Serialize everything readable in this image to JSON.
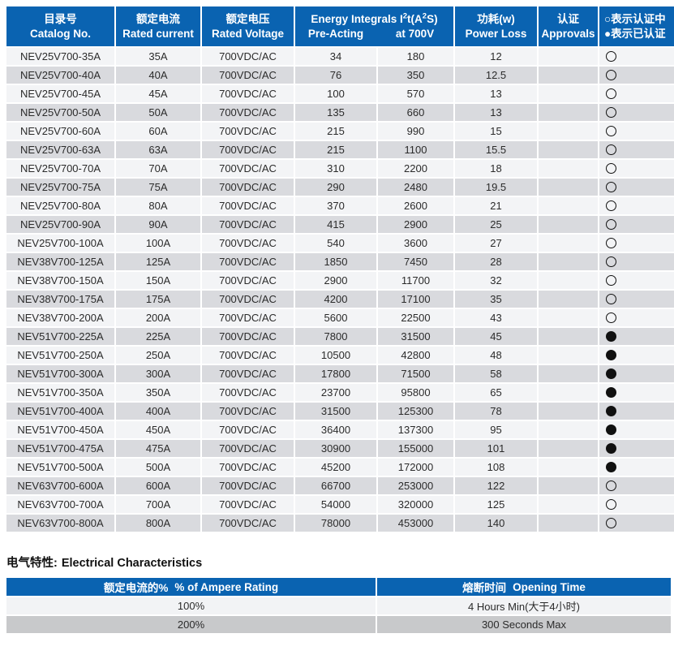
{
  "colors": {
    "header_blue": "#0a63b1",
    "row_light": "#f3f4f6",
    "row_dark": "#d9dade",
    "elec_row_dark": "#c8c9cb",
    "text": "#2b2b2b",
    "status_dot": "#111111"
  },
  "main_table": {
    "header": {
      "catalog_zh": "目录号",
      "catalog_en": "Catalog No.",
      "current_zh": "额定电流",
      "current_en": "Rated current",
      "voltage_zh": "额定电压",
      "voltage_en": "Rated Voltage",
      "energy_parts": [
        "Energy Integrals I",
        "2",
        "t(A",
        "2",
        "S)"
      ],
      "energy_sub_pre": "Pre-Acting",
      "energy_sub_at": "at 700V",
      "power_zh": "功耗(w)",
      "power_en": "Power Loss",
      "approvals_zh": "认证",
      "approvals_en": "Approvals",
      "legend_line1": "○表示认证中",
      "legend_line2": "●表示已认证"
    },
    "rows": [
      {
        "catalog": "NEV25V700-35A",
        "current": "35A",
        "voltage": "700VDC/AC",
        "pre_acting": "34",
        "at_700v": "180",
        "power_loss": "12",
        "status": "○"
      },
      {
        "catalog": "NEV25V700-40A",
        "current": "40A",
        "voltage": "700VDC/AC",
        "pre_acting": "76",
        "at_700v": "350",
        "power_loss": "12.5",
        "status": "○"
      },
      {
        "catalog": "NEV25V700-45A",
        "current": "45A",
        "voltage": "700VDC/AC",
        "pre_acting": "100",
        "at_700v": "570",
        "power_loss": "13",
        "status": "○"
      },
      {
        "catalog": "NEV25V700-50A",
        "current": "50A",
        "voltage": "700VDC/AC",
        "pre_acting": "135",
        "at_700v": "660",
        "power_loss": "13",
        "status": "○"
      },
      {
        "catalog": "NEV25V700-60A",
        "current": "60A",
        "voltage": "700VDC/AC",
        "pre_acting": "215",
        "at_700v": "990",
        "power_loss": "15",
        "status": "○"
      },
      {
        "catalog": "NEV25V700-63A",
        "current": "63A",
        "voltage": "700VDC/AC",
        "pre_acting": "215",
        "at_700v": "1100",
        "power_loss": "15.5",
        "status": "○"
      },
      {
        "catalog": "NEV25V700-70A",
        "current": "70A",
        "voltage": "700VDC/AC",
        "pre_acting": "310",
        "at_700v": "2200",
        "power_loss": "18",
        "status": "○"
      },
      {
        "catalog": "NEV25V700-75A",
        "current": "75A",
        "voltage": "700VDC/AC",
        "pre_acting": "290",
        "at_700v": "2480",
        "power_loss": "19.5",
        "status": "○"
      },
      {
        "catalog": "NEV25V700-80A",
        "current": "80A",
        "voltage": "700VDC/AC",
        "pre_acting": "370",
        "at_700v": "2600",
        "power_loss": "21",
        "status": "○"
      },
      {
        "catalog": "NEV25V700-90A",
        "current": "90A",
        "voltage": "700VDC/AC",
        "pre_acting": "415",
        "at_700v": "2900",
        "power_loss": "25",
        "status": "○"
      },
      {
        "catalog": "NEV25V700-100A",
        "current": "100A",
        "voltage": "700VDC/AC",
        "pre_acting": "540",
        "at_700v": "3600",
        "power_loss": "27",
        "status": "○"
      },
      {
        "catalog": "NEV38V700-125A",
        "current": "125A",
        "voltage": "700VDC/AC",
        "pre_acting": "1850",
        "at_700v": "7450",
        "power_loss": "28",
        "status": "○"
      },
      {
        "catalog": "NEV38V700-150A",
        "current": "150A",
        "voltage": "700VDC/AC",
        "pre_acting": "2900",
        "at_700v": "11700",
        "power_loss": "32",
        "status": "○"
      },
      {
        "catalog": "NEV38V700-175A",
        "current": "175A",
        "voltage": "700VDC/AC",
        "pre_acting": "4200",
        "at_700v": "17100",
        "power_loss": "35",
        "status": "○"
      },
      {
        "catalog": "NEV38V700-200A",
        "current": "200A",
        "voltage": "700VDC/AC",
        "pre_acting": "5600",
        "at_700v": "22500",
        "power_loss": "43",
        "status": "○"
      },
      {
        "catalog": "NEV51V700-225A",
        "current": "225A",
        "voltage": "700VDC/AC",
        "pre_acting": "7800",
        "at_700v": "31500",
        "power_loss": "45",
        "status": "●"
      },
      {
        "catalog": "NEV51V700-250A",
        "current": "250A",
        "voltage": "700VDC/AC",
        "pre_acting": "10500",
        "at_700v": "42800",
        "power_loss": "48",
        "status": "●"
      },
      {
        "catalog": "NEV51V700-300A",
        "current": "300A",
        "voltage": "700VDC/AC",
        "pre_acting": "17800",
        "at_700v": "71500",
        "power_loss": "58",
        "status": "●"
      },
      {
        "catalog": "NEV51V700-350A",
        "current": "350A",
        "voltage": "700VDC/AC",
        "pre_acting": "23700",
        "at_700v": "95800",
        "power_loss": "65",
        "status": "●"
      },
      {
        "catalog": "NEV51V700-400A",
        "current": "400A",
        "voltage": "700VDC/AC",
        "pre_acting": "31500",
        "at_700v": "125300",
        "power_loss": "78",
        "status": "●"
      },
      {
        "catalog": "NEV51V700-450A",
        "current": "450A",
        "voltage": "700VDC/AC",
        "pre_acting": "36400",
        "at_700v": "137300",
        "power_loss": "95",
        "status": "●"
      },
      {
        "catalog": "NEV51V700-475A",
        "current": "475A",
        "voltage": "700VDC/AC",
        "pre_acting": "30900",
        "at_700v": "155000",
        "power_loss": "101",
        "status": "●"
      },
      {
        "catalog": "NEV51V700-500A",
        "current": "500A",
        "voltage": "700VDC/AC",
        "pre_acting": "45200",
        "at_700v": "172000",
        "power_loss": "108",
        "status": "●"
      },
      {
        "catalog": "NEV63V700-600A",
        "current": "600A",
        "voltage": "700VDC/AC",
        "pre_acting": "66700",
        "at_700v": "253000",
        "power_loss": "122",
        "status": "○"
      },
      {
        "catalog": "NEV63V700-700A",
        "current": "700A",
        "voltage": "700VDC/AC",
        "pre_acting": "54000",
        "at_700v": "320000",
        "power_loss": "125",
        "status": "○"
      },
      {
        "catalog": "NEV63V700-800A",
        "current": "800A",
        "voltage": "700VDC/AC",
        "pre_acting": "78000",
        "at_700v": "453000",
        "power_loss": "140",
        "status": "○"
      }
    ]
  },
  "section": {
    "title_zh": "电气特性:",
    "title_en": "Electrical Characteristics"
  },
  "elec_table": {
    "header": {
      "rating_zh": "额定电流的%",
      "rating_en": "% of Ampere Rating",
      "time_zh": "熔断时间",
      "time_en": "Opening Time"
    },
    "rows": [
      {
        "rating": "100%",
        "time": "4 Hours Min(大于4小时)"
      },
      {
        "rating": "200%",
        "time": "300 Seconds Max"
      }
    ]
  }
}
